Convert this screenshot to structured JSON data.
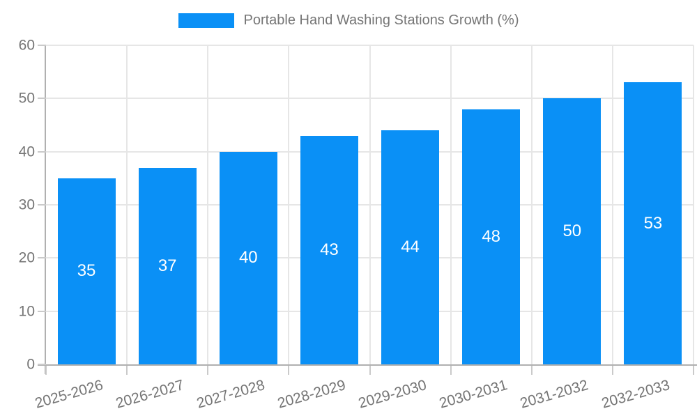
{
  "legend": {
    "label": "Portable Hand Washing Stations Growth (%)"
  },
  "chart_data": {
    "type": "bar",
    "title": "Portable Hand Washing Stations Growth (%)",
    "categories": [
      "2025-2026",
      "2026-2027",
      "2027-2028",
      "2028-2029",
      "2029-2030",
      "2030-2031",
      "2031-2032",
      "2032-2033"
    ],
    "values": [
      35,
      37,
      40,
      43,
      44,
      48,
      50,
      53
    ],
    "xlabel": "",
    "ylabel": "",
    "ylim": [
      0,
      60
    ],
    "yticks": [
      0,
      10,
      20,
      30,
      40,
      50,
      60
    ],
    "grid": true,
    "legend_position": "top",
    "colors": {
      "bar": "#0a90f6",
      "bar_label": "#ffffff",
      "axis_text": "#757575",
      "grid_line": "#e6e6e6",
      "axis_line": "#b0b0b0",
      "tick_line": "#cacaca",
      "background": "#ffffff"
    }
  }
}
